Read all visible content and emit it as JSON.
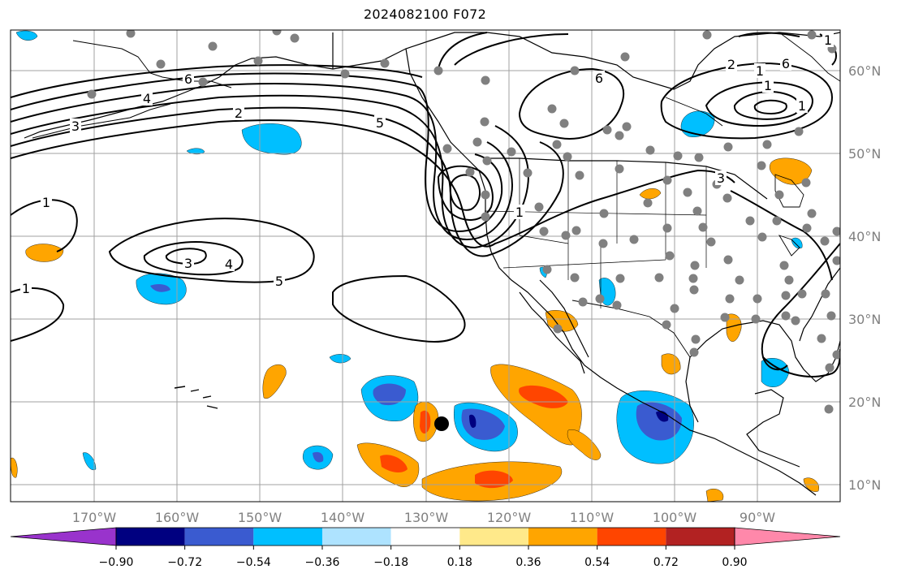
{
  "title": "2024082100 F072",
  "colors": {
    "background": "#ffffff",
    "grid": "#a0a0a0",
    "coast": "#000000",
    "contour": "#000000",
    "station": "#808080",
    "storm_marker": "#000000",
    "tick_label": "#808080"
  },
  "axes": {
    "lat_labels": [
      "60°N",
      "50°N",
      "40°N",
      "30°N",
      "20°N",
      "10°N"
    ],
    "lon_labels": [
      "170°W",
      "160°W",
      "150°W",
      "140°W",
      "130°W",
      "120°W",
      "110°W",
      "100°W",
      "90°W"
    ]
  },
  "contour_labels": [
    "6",
    "4",
    "3",
    "2",
    "5",
    "1",
    "1",
    "3",
    "4",
    "5",
    "6",
    "6",
    "1",
    "1",
    "1",
    "3",
    "2",
    "1",
    "1"
  ],
  "colorbar": {
    "colors": [
      "#9933cc",
      "#000080",
      "#3a5bd0",
      "#00bfff",
      "#aee3ff",
      "#ffffff",
      "#ffe98a",
      "#ffa500",
      "#ff4500",
      "#b22222",
      "#ff88aa"
    ],
    "tick_labels": [
      "−0.90",
      "−0.72",
      "−0.54",
      "−0.36",
      "−0.18",
      "0.18",
      "0.36",
      "0.54",
      "0.72",
      "0.90"
    ]
  }
}
